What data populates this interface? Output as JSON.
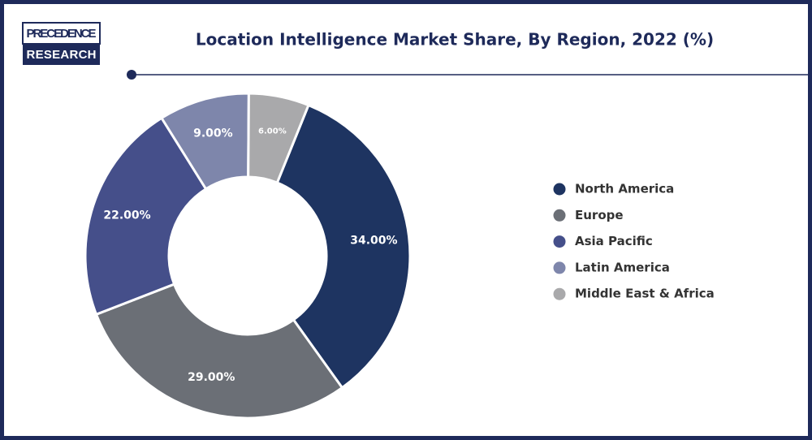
{
  "logo": {
    "line1": "PRECEDENCE",
    "line2": "RESEARCH"
  },
  "chart_data": {
    "type": "pie",
    "title": "Location Intelligence Market Share, By Region, 2022 (%)",
    "categories": [
      "North America",
      "Europe",
      "Asia Pacific",
      "Latin America",
      "Middle East & Africa"
    ],
    "values": [
      34,
      29,
      22,
      9,
      6
    ],
    "value_labels": [
      "34.00%",
      "29.00%",
      "22.00%",
      "9.00%",
      "6.00%"
    ],
    "colors": [
      "#1e3461",
      "#6b6f76",
      "#454f8a",
      "#7e86ab",
      "#a9a9ab"
    ],
    "legend": "right"
  }
}
